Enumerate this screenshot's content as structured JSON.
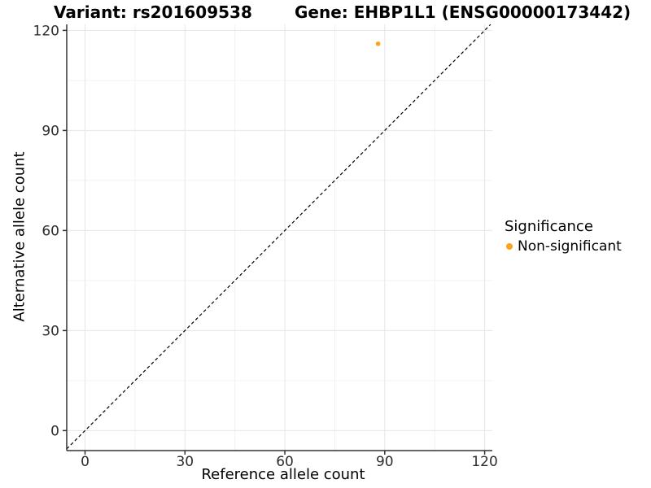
{
  "chart_data": {
    "type": "scatter",
    "titles": {
      "left": "Variant: rs201609538",
      "right": "Gene: EHBP1L1 (ENSG00000173442)"
    },
    "xlabel": "Reference allele count",
    "ylabel": "Alternative allele count",
    "xlim": [
      -5.5,
      122.3
    ],
    "ylim": [
      -6,
      121.8
    ],
    "xticks": [
      0,
      30,
      60,
      90,
      120
    ],
    "yticks": [
      0,
      30,
      60,
      90,
      120
    ],
    "minor_xticks": [
      15,
      45,
      75,
      105
    ],
    "minor_yticks": [
      15,
      45,
      75,
      105
    ],
    "grid": "major and minor gridlines on white panel",
    "series": [
      {
        "name": "Non-significant",
        "color": "#FFA319",
        "points": [
          {
            "x": 88,
            "y": 116
          }
        ]
      }
    ],
    "reference_line": {
      "kind": "identity y=x",
      "slope": 1,
      "intercept": 0,
      "style": "dashed",
      "color": "#000000"
    },
    "legend": {
      "title": "Significance",
      "position": "right",
      "items": [
        {
          "label": "Non-significant",
          "color": "#FFA319"
        }
      ]
    }
  },
  "theme": {
    "background": "#FFFFFF",
    "major_grid": "#E6E6E6",
    "minor_grid": "#F2F2F2",
    "axis_line": "#333333",
    "tick_text": "#2E2E2E"
  }
}
